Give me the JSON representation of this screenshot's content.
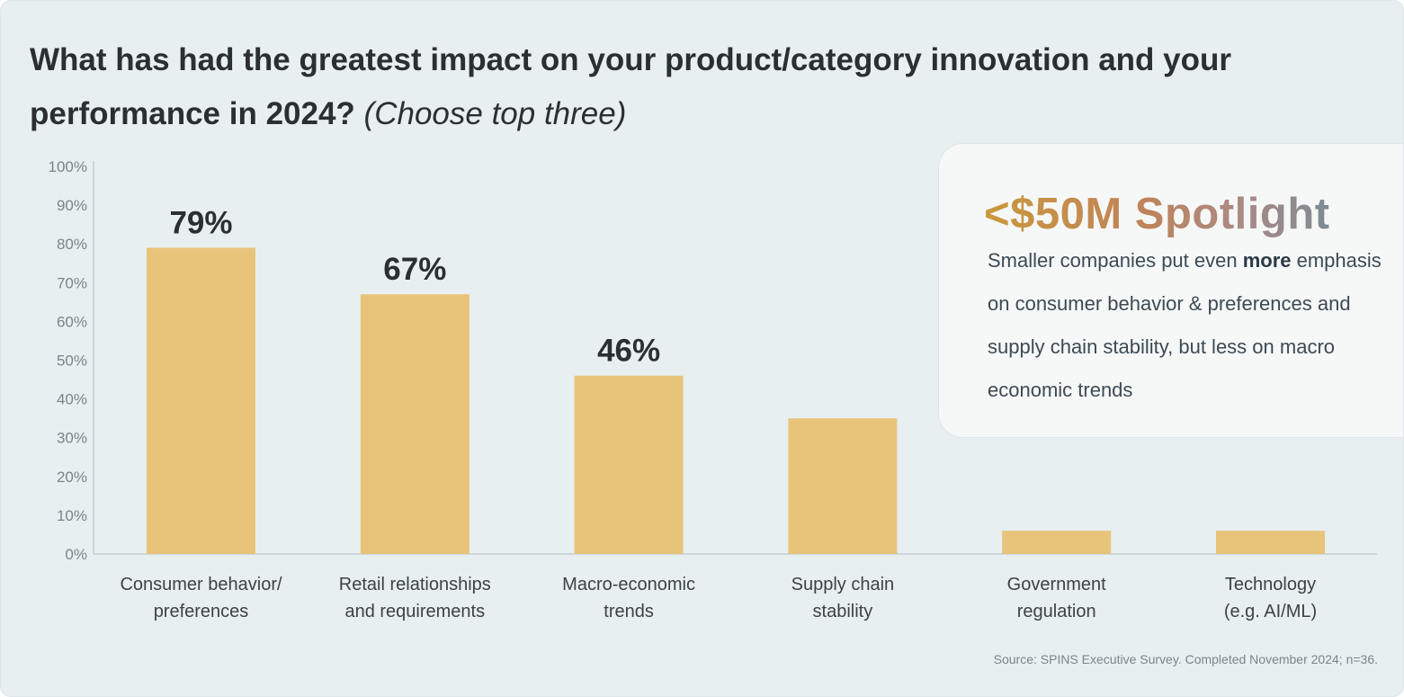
{
  "title": {
    "main": "What has had the greatest impact on your product/category innovation and your performance in 2024?",
    "sub": "(Choose top three)"
  },
  "chart_data": {
    "type": "bar",
    "categories": [
      [
        "Consumer behavior/",
        "preferences"
      ],
      [
        "Retail relationships",
        "and requirements"
      ],
      [
        "Macro-economic",
        "trends"
      ],
      [
        "Supply chain",
        "stability"
      ],
      [
        "Government",
        "regulation"
      ],
      [
        "Technology",
        "(e.g. AI/ML)"
      ]
    ],
    "values": [
      79,
      67,
      46,
      35,
      6,
      6
    ],
    "data_labels": [
      "79%",
      "67%",
      "46%",
      "",
      "",
      ""
    ],
    "ylim": [
      0,
      100
    ],
    "yticks": [
      0,
      10,
      20,
      30,
      40,
      50,
      60,
      70,
      80,
      90,
      100
    ],
    "ytick_labels": [
      "0%",
      "10%",
      "20%",
      "30%",
      "40%",
      "50%",
      "60%",
      "70%",
      "80%",
      "90%",
      "100%"
    ],
    "bar_color": "#e8c47b",
    "axis_color": "#cfd6d9"
  },
  "spotlight": {
    "title": "<$50M Spotlight",
    "text_before": "Smaller companies put even ",
    "text_bold": "more",
    "text_after": " emphasis on consumer behavior & preferences and supply chain stability, but less on macro economic trends"
  },
  "source": "Source: SPINS Executive Survey. Completed November 2024; n=36."
}
